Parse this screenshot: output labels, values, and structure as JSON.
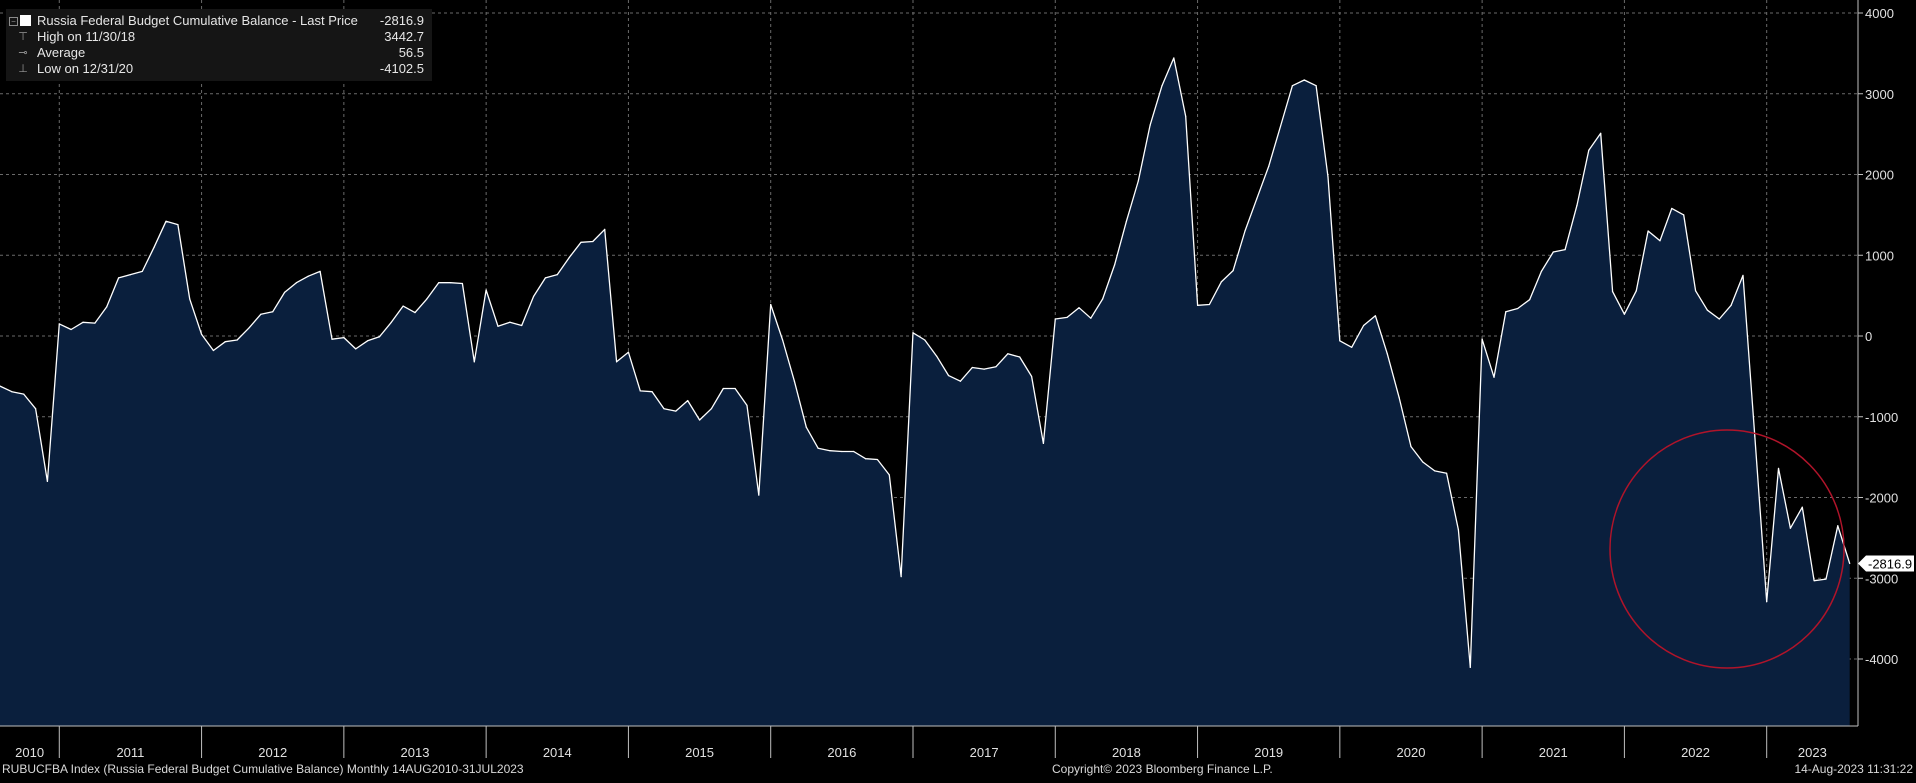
{
  "legend": {
    "title": "Russia Federal Budget Cumulative Balance - Last Price",
    "title_value": "-2816.9",
    "high_label": "High on 11/30/18",
    "high_value": "3442.7",
    "average_label": "Average",
    "average_value": "56.5",
    "low_label": "Low on 12/31/20",
    "low_value": "-4102.5"
  },
  "footer": {
    "left": "RUBUCFBA Index (Russia Federal Budget Cumulative Balance)  Monthly 14AUG2010-31JUL2023",
    "center": "Copyright© 2023 Bloomberg Finance L.P.",
    "right": "14-Aug-2023 11:31:22"
  },
  "colors": {
    "background": "#000000",
    "area_fill": "#0a1f3d",
    "line": "#ffffff",
    "grid": "#6a6a6a",
    "circle": "#b0142a"
  },
  "chart_data": {
    "type": "area",
    "title": "Russia Federal Budget Cumulative Balance",
    "last_price_label": "-2816.9",
    "ylim": [
      -4850,
      4000
    ],
    "y_ticks": [
      -4000,
      -3000,
      -2000,
      -1000,
      0,
      1000,
      2000,
      3000,
      4000
    ],
    "y_tick_labels": [
      "-4000",
      "-3000",
      "-2000",
      "-1000",
      "0",
      "1000",
      "2000",
      "3000",
      "4000"
    ],
    "x_labels": [
      "2010",
      "2011",
      "2012",
      "2013",
      "2014",
      "2015",
      "2016",
      "2017",
      "2018",
      "2019",
      "2020",
      "2021",
      "2022",
      "2023"
    ],
    "grid": true,
    "annotation": "red circle around 2022-2023 values",
    "series": [
      {
        "points": [
          [
            "2010-08",
            -620
          ],
          [
            "2010-09",
            -690
          ],
          [
            "2010-10",
            -720
          ],
          [
            "2010-11",
            -900
          ],
          [
            "2010-12",
            -1800
          ],
          [
            "2011-01",
            150
          ],
          [
            "2011-02",
            80
          ],
          [
            "2011-03",
            170
          ],
          [
            "2011-04",
            160
          ],
          [
            "2011-05",
            360
          ],
          [
            "2011-06",
            720
          ],
          [
            "2011-07",
            760
          ],
          [
            "2011-08",
            800
          ],
          [
            "2011-09",
            1100
          ],
          [
            "2011-10",
            1420
          ],
          [
            "2011-11",
            1380
          ],
          [
            "2011-12",
            460
          ],
          [
            "2012-01",
            20
          ],
          [
            "2012-02",
            -180
          ],
          [
            "2012-03",
            -70
          ],
          [
            "2012-04",
            -50
          ],
          [
            "2012-05",
            100
          ],
          [
            "2012-06",
            270
          ],
          [
            "2012-07",
            300
          ],
          [
            "2012-08",
            540
          ],
          [
            "2012-09",
            660
          ],
          [
            "2012-10",
            740
          ],
          [
            "2012-11",
            800
          ],
          [
            "2012-12",
            -40
          ],
          [
            "2013-01",
            -20
          ],
          [
            "2013-02",
            -160
          ],
          [
            "2013-03",
            -60
          ],
          [
            "2013-04",
            -10
          ],
          [
            "2013-05",
            170
          ],
          [
            "2013-06",
            370
          ],
          [
            "2013-07",
            290
          ],
          [
            "2013-08",
            460
          ],
          [
            "2013-09",
            660
          ],
          [
            "2013-10",
            660
          ],
          [
            "2013-11",
            650
          ],
          [
            "2013-12",
            -320
          ],
          [
            "2014-01",
            570
          ],
          [
            "2014-02",
            120
          ],
          [
            "2014-03",
            170
          ],
          [
            "2014-04",
            130
          ],
          [
            "2014-05",
            490
          ],
          [
            "2014-06",
            720
          ],
          [
            "2014-07",
            760
          ],
          [
            "2014-08",
            970
          ],
          [
            "2014-09",
            1160
          ],
          [
            "2014-10",
            1170
          ],
          [
            "2014-11",
            1320
          ],
          [
            "2014-12",
            -320
          ],
          [
            "2015-01",
            -200
          ],
          [
            "2015-02",
            -680
          ],
          [
            "2015-03",
            -690
          ],
          [
            "2015-04",
            -900
          ],
          [
            "2015-05",
            -930
          ],
          [
            "2015-06",
            -800
          ],
          [
            "2015-07",
            -1040
          ],
          [
            "2015-08",
            -900
          ],
          [
            "2015-09",
            -650
          ],
          [
            "2015-10",
            -650
          ],
          [
            "2015-11",
            -860
          ],
          [
            "2015-12",
            -1970
          ],
          [
            "2016-01",
            390
          ],
          [
            "2016-02",
            -50
          ],
          [
            "2016-03",
            -560
          ],
          [
            "2016-04",
            -1130
          ],
          [
            "2016-05",
            -1390
          ],
          [
            "2016-06",
            -1420
          ],
          [
            "2016-07",
            -1430
          ],
          [
            "2016-08",
            -1430
          ],
          [
            "2016-09",
            -1520
          ],
          [
            "2016-10",
            -1530
          ],
          [
            "2016-11",
            -1720
          ],
          [
            "2016-12",
            -2980
          ],
          [
            "2017-01",
            40
          ],
          [
            "2017-02",
            -50
          ],
          [
            "2017-03",
            -250
          ],
          [
            "2017-04",
            -490
          ],
          [
            "2017-05",
            -560
          ],
          [
            "2017-06",
            -390
          ],
          [
            "2017-07",
            -410
          ],
          [
            "2017-08",
            -380
          ],
          [
            "2017-09",
            -220
          ],
          [
            "2017-10",
            -260
          ],
          [
            "2017-11",
            -500
          ],
          [
            "2017-12",
            -1330
          ],
          [
            "2018-01",
            210
          ],
          [
            "2018-02",
            230
          ],
          [
            "2018-03",
            350
          ],
          [
            "2018-04",
            220
          ],
          [
            "2018-05",
            460
          ],
          [
            "2018-06",
            880
          ],
          [
            "2018-07",
            1420
          ],
          [
            "2018-08",
            1920
          ],
          [
            "2018-09",
            2610
          ],
          [
            "2018-10",
            3100
          ],
          [
            "2018-11",
            3442.7
          ],
          [
            "2018-12",
            2720
          ],
          [
            "2019-01",
            380
          ],
          [
            "2019-02",
            390
          ],
          [
            "2019-03",
            670
          ],
          [
            "2019-04",
            810
          ],
          [
            "2019-05",
            1300
          ],
          [
            "2019-06",
            1700
          ],
          [
            "2019-07",
            2100
          ],
          [
            "2019-08",
            2600
          ],
          [
            "2019-09",
            3100
          ],
          [
            "2019-10",
            3170
          ],
          [
            "2019-11",
            3100
          ],
          [
            "2019-12",
            1970
          ],
          [
            "2020-01",
            -60
          ],
          [
            "2020-02",
            -140
          ],
          [
            "2020-03",
            130
          ],
          [
            "2020-04",
            250
          ],
          [
            "2020-05",
            -220
          ],
          [
            "2020-06",
            -760
          ],
          [
            "2020-07",
            -1370
          ],
          [
            "2020-08",
            -1560
          ],
          [
            "2020-09",
            -1670
          ],
          [
            "2020-10",
            -1700
          ],
          [
            "2020-11",
            -2400
          ],
          [
            "2020-12",
            -4102.5
          ],
          [
            "2021-01",
            -40
          ],
          [
            "2021-02",
            -510
          ],
          [
            "2021-03",
            300
          ],
          [
            "2021-04",
            340
          ],
          [
            "2021-05",
            450
          ],
          [
            "2021-06",
            800
          ],
          [
            "2021-07",
            1040
          ],
          [
            "2021-08",
            1070
          ],
          [
            "2021-09",
            1620
          ],
          [
            "2021-10",
            2300
          ],
          [
            "2021-11",
            2510
          ],
          [
            "2021-12",
            550
          ],
          [
            "2022-01",
            270
          ],
          [
            "2022-02",
            560
          ],
          [
            "2022-03",
            1300
          ],
          [
            "2022-04",
            1180
          ],
          [
            "2022-05",
            1580
          ],
          [
            "2022-06",
            1500
          ],
          [
            "2022-07",
            560
          ],
          [
            "2022-08",
            320
          ],
          [
            "2022-09",
            210
          ],
          [
            "2022-10",
            380
          ],
          [
            "2022-11",
            750
          ],
          [
            "2022-12",
            -1240
          ],
          [
            "2023-01",
            -3290
          ],
          [
            "2023-02",
            -1640
          ],
          [
            "2023-03",
            -2380
          ],
          [
            "2023-04",
            -2120
          ],
          [
            "2023-05",
            -3030
          ],
          [
            "2023-06",
            -3010
          ],
          [
            "2023-07",
            -2350
          ],
          [
            "2023-08",
            -2816.9
          ]
        ]
      }
    ]
  }
}
